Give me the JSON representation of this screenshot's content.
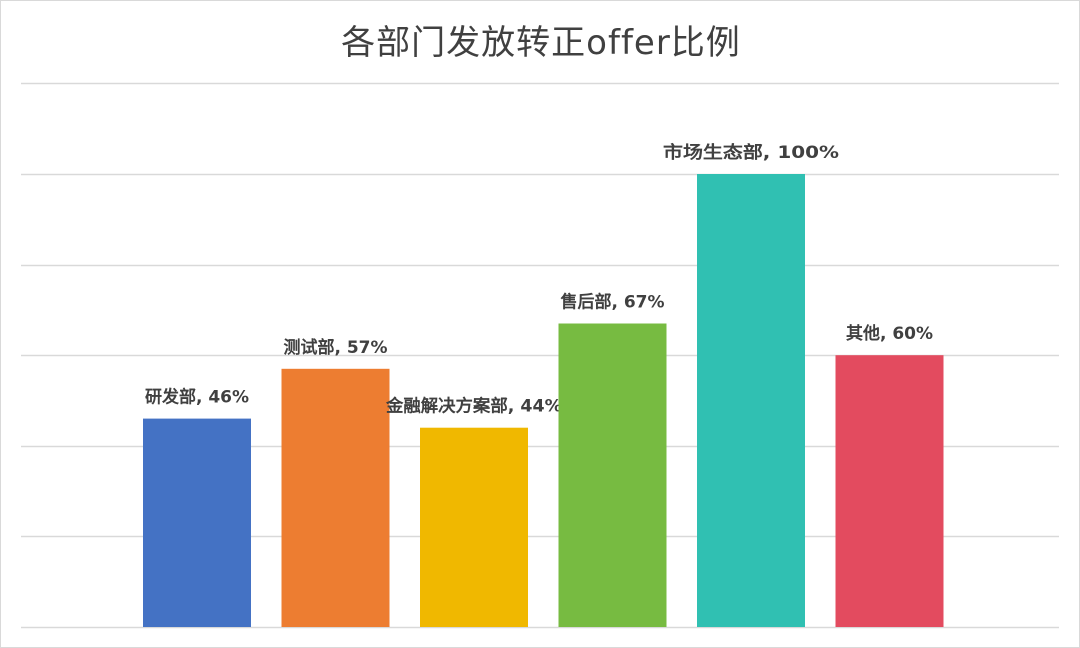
{
  "chart_data": {
    "type": "bar",
    "title": "各部门发放转正offer比例",
    "xlabel": "",
    "ylabel": "",
    "categories": [
      "研发部",
      "测试部",
      "金融解决方案部",
      "售后部",
      "市场生态部",
      "其他"
    ],
    "values": [
      46,
      57,
      44,
      67,
      100,
      60
    ],
    "value_unit": "%",
    "data_labels": [
      "研发部, 46%",
      "测试部, 57%",
      "金融解决方案部, 44%",
      "售后部, 67%",
      "市场生态部, 100%",
      "其他, 60%"
    ],
    "colors": [
      "#4472C4",
      "#ED7D31",
      "#F0B800",
      "#77BB41",
      "#30C0B2",
      "#E34B5F"
    ],
    "ylim": [
      0,
      120
    ],
    "y_gridline_step": 20,
    "grid": true,
    "y_axis_labels_shown": false,
    "x_axis_labels_shown": false,
    "legend": "none"
  }
}
